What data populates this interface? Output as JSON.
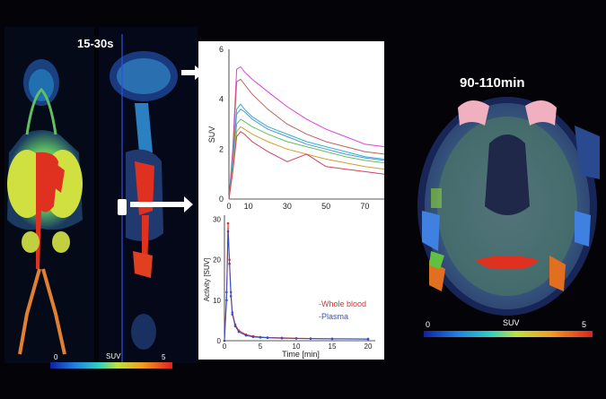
{
  "early_label": "15-30s",
  "late_label": "90-110min",
  "left_colorbar": {
    "min": "0",
    "label": "SUV",
    "max": "5"
  },
  "right_colorbar": {
    "min": "0",
    "label": "SUV",
    "max": "5"
  },
  "colors": {
    "background": "#040408",
    "whole_blood": "#e0302a",
    "plasma": "#3050d0"
  },
  "chart_data": [
    {
      "type": "line",
      "ylabel": "SUV",
      "xlabel": "",
      "xlim": [
        0,
        80
      ],
      "ylim": [
        0,
        6
      ],
      "y_ticks": [
        "0",
        "2",
        "4",
        "6"
      ],
      "x_ticks": [
        "0",
        "10",
        "30",
        "50",
        "70"
      ],
      "x_tick_values": [
        0,
        10,
        30,
        50,
        70
      ],
      "series": [
        {
          "color": "#e040e0",
          "x": [
            0,
            2,
            4,
            6,
            8,
            12,
            20,
            30,
            40,
            50,
            60,
            70,
            80
          ],
          "y": [
            0,
            2.0,
            5.2,
            5.3,
            5.1,
            4.8,
            4.3,
            3.7,
            3.2,
            2.8,
            2.5,
            2.2,
            2.1
          ]
        },
        {
          "color": "#c06060",
          "x": [
            0,
            2,
            4,
            6,
            8,
            12,
            20,
            30,
            40,
            50,
            60,
            70,
            80
          ],
          "y": [
            0,
            1.8,
            4.7,
            4.8,
            4.6,
            4.2,
            3.6,
            3.0,
            2.6,
            2.3,
            2.1,
            1.9,
            1.8
          ]
        },
        {
          "color": "#30b0d0",
          "x": [
            0,
            2,
            4,
            6,
            8,
            12,
            20,
            30,
            40,
            50,
            60,
            70,
            80
          ],
          "y": [
            0,
            1.6,
            3.6,
            3.8,
            3.6,
            3.3,
            2.9,
            2.6,
            2.3,
            2.1,
            1.9,
            1.7,
            1.6
          ]
        },
        {
          "color": "#5090e0",
          "x": [
            0,
            2,
            4,
            6,
            8,
            12,
            20,
            30,
            40,
            50,
            60,
            70,
            80
          ],
          "y": [
            0,
            1.5,
            3.4,
            3.6,
            3.5,
            3.2,
            2.8,
            2.5,
            2.2,
            2.0,
            1.8,
            1.65,
            1.55
          ]
        },
        {
          "color": "#60c060",
          "x": [
            0,
            2,
            4,
            6,
            8,
            12,
            20,
            30,
            40,
            50,
            60,
            70,
            80
          ],
          "y": [
            0,
            1.3,
            3.0,
            3.2,
            3.1,
            2.9,
            2.6,
            2.3,
            2.1,
            1.9,
            1.7,
            1.55,
            1.45
          ]
        },
        {
          "color": "#d0a030",
          "x": [
            0,
            2,
            4,
            6,
            8,
            12,
            20,
            30,
            40,
            50,
            60,
            70,
            80
          ],
          "y": [
            0,
            1.2,
            2.7,
            2.9,
            2.8,
            2.6,
            2.3,
            2.0,
            1.8,
            1.6,
            1.45,
            1.3,
            1.2
          ]
        },
        {
          "color": "#d04060",
          "x": [
            0,
            2,
            4,
            6,
            8,
            12,
            20,
            30,
            40,
            50,
            60,
            70,
            80
          ],
          "y": [
            0,
            1.1,
            2.5,
            2.7,
            2.6,
            2.3,
            1.9,
            1.5,
            1.8,
            1.3,
            1.2,
            1.1,
            1.0
          ]
        }
      ]
    },
    {
      "type": "line",
      "xlabel": "Time [min]",
      "ylabel": "Activity [SUV]",
      "xlim": [
        0,
        21
      ],
      "ylim": [
        0,
        31
      ],
      "x_ticks": [
        "0",
        "5",
        "10",
        "15",
        "20"
      ],
      "y_ticks": [
        "0",
        "10",
        "20",
        "30"
      ],
      "series": [
        {
          "name": "-Whole blood",
          "color": "#e0302a",
          "x": [
            0,
            0.3,
            0.5,
            0.7,
            0.9,
            1.1,
            1.5,
            2,
            3,
            4,
            5,
            6,
            8,
            10,
            12,
            15,
            20
          ],
          "y": [
            0,
            12,
            29,
            20,
            12,
            7,
            4,
            2.5,
            1.5,
            1.1,
            0.9,
            0.8,
            0.7,
            0.6,
            0.55,
            0.5,
            0.45
          ]
        },
        {
          "name": "-Plasma",
          "color": "#3050d0",
          "x": [
            0,
            0.3,
            0.5,
            0.7,
            0.9,
            1.1,
            1.5,
            2,
            3,
            4,
            5,
            6,
            8,
            10,
            12,
            15,
            20
          ],
          "y": [
            0,
            10,
            27,
            19,
            11,
            6.5,
            3.6,
            2.2,
            1.3,
            0.95,
            0.8,
            0.7,
            0.62,
            0.55,
            0.5,
            0.45,
            0.4
          ]
        }
      ]
    }
  ]
}
